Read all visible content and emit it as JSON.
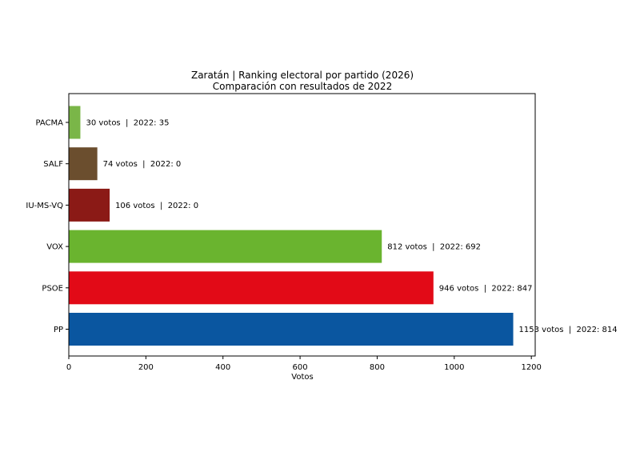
{
  "chart_data": {
    "type": "bar",
    "orientation": "horizontal",
    "title": "Zaratán | Ranking electoral por partido (2026)",
    "subtitle": "Comparación con resultados de 2022",
    "xlabel": "Votos",
    "ylabel": "",
    "xlim": [
      0,
      1210
    ],
    "xticks": [
      0,
      200,
      400,
      600,
      800,
      1000,
      1200
    ],
    "grid": false,
    "categories": [
      "PACMA",
      "SALF",
      "IU-MS-VQ",
      "VOX",
      "PSOE",
      "PP"
    ],
    "values": [
      30,
      74,
      106,
      812,
      946,
      1153
    ],
    "values_2022": [
      35,
      0,
      0,
      692,
      847,
      814
    ],
    "colors": [
      "#7ab648",
      "#6b4e2e",
      "#8b1a16",
      "#6ab42f",
      "#e20a17",
      "#0a56a0"
    ],
    "data_labels": [
      "30 votos  |  2022: 35",
      "74 votos  |  2022: 0",
      "106 votos  |  2022: 0",
      "812 votos  |  2022: 692",
      "946 votos  |  2022: 847",
      "1153 votos  |  2022: 814"
    ]
  }
}
